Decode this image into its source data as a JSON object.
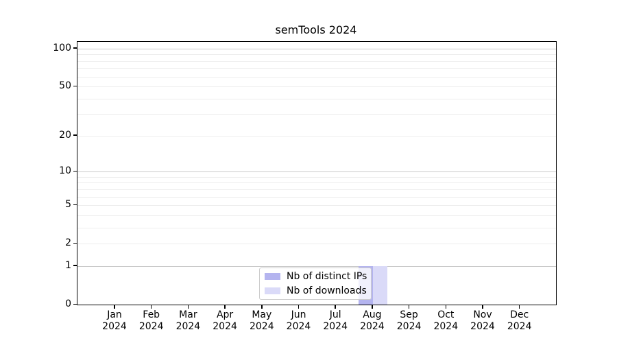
{
  "title": "semTools 2024",
  "chart_data": {
    "type": "bar",
    "title": "semTools 2024",
    "yscale": "log1p",
    "ylim": [
      0,
      113.3
    ],
    "grid": true,
    "categories": [
      "Jan 2024",
      "Feb 2024",
      "Mar 2024",
      "Apr 2024",
      "May 2024",
      "Jun 2024",
      "Jul 2024",
      "Aug 2024",
      "Sep 2024",
      "Oct 2024",
      "Nov 2024",
      "Dec 2024"
    ],
    "x_tick_months": [
      "Jan",
      "Feb",
      "Mar",
      "Apr",
      "May",
      "Jun",
      "Jul",
      "Aug",
      "Sep",
      "Oct",
      "Nov",
      "Dec"
    ],
    "x_tick_year": "2024",
    "series": [
      {
        "name": "Nb of distinct IPs",
        "color": "#b4b4ef",
        "values": [
          0,
          0,
          0,
          0,
          0,
          0,
          0,
          1,
          0,
          0,
          0,
          0
        ]
      },
      {
        "name": "Nb of downloads",
        "color": "#dadaf8",
        "values": [
          0,
          0,
          0,
          0,
          0,
          0,
          0,
          1,
          0,
          0,
          0,
          0
        ]
      }
    ],
    "yticks": [
      0,
      1,
      2,
      5,
      10,
      20,
      50,
      100
    ],
    "gridlines_major": [
      1,
      10,
      100
    ],
    "gridlines_minor": [
      2,
      3,
      4,
      5,
      6,
      7,
      8,
      9,
      20,
      30,
      40,
      50,
      60,
      70,
      80,
      90
    ],
    "legend_position": "bottom-center"
  }
}
